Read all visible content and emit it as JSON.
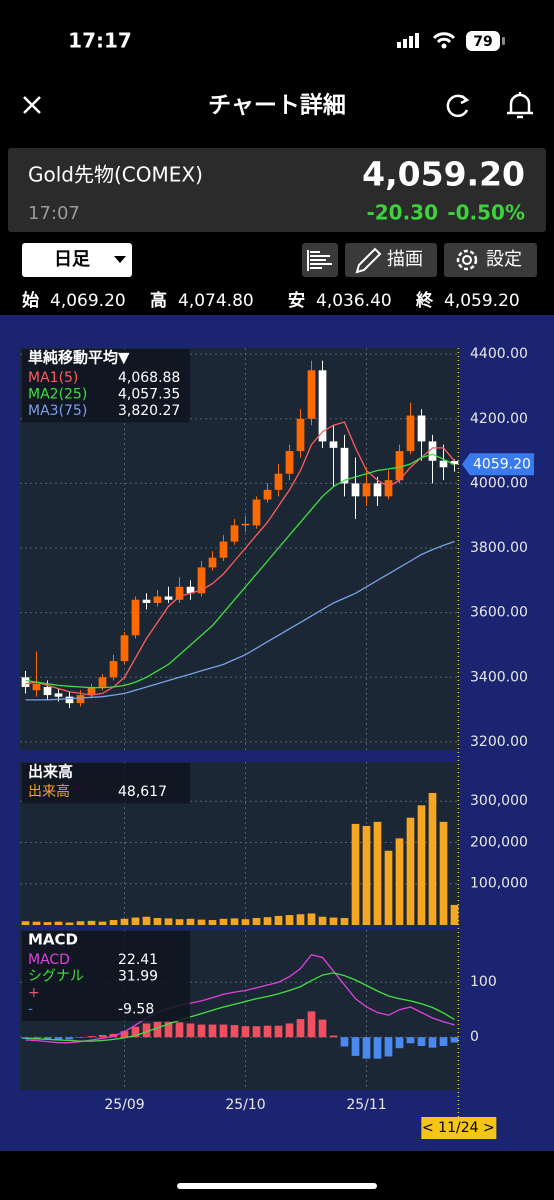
{
  "status_bar": {
    "time": "17:17",
    "battery": "79"
  },
  "header": {
    "title": "チャート詳細"
  },
  "quote": {
    "name": "Gold先物(COMEX)",
    "price": "4,059.20",
    "time": "17:07",
    "change": "-20.30",
    "change_pct": "-0.50%"
  },
  "toolbar": {
    "period": "日足",
    "draw": "描画",
    "settings": "設定"
  },
  "ohlc": [
    {
      "label": "始",
      "value": "4,069.20"
    },
    {
      "label": "高",
      "value": "4,074.80"
    },
    {
      "label": "安",
      "value": "4,036.40"
    },
    {
      "label": "終",
      "value": "4,059.20"
    }
  ],
  "chart_data": [
    {
      "type": "candlestick",
      "legend_title": "単純移動平均▼",
      "up_color": "#ff6a00",
      "down_color": "#ffffff",
      "open": [
        3400,
        3360,
        3370,
        3350,
        3340,
        3320,
        3345,
        3370,
        3400,
        3450,
        3530,
        3640,
        3630,
        3650,
        3640,
        3680,
        3660,
        3740,
        3770,
        3820,
        3870,
        3870,
        3950,
        3980,
        4030,
        4100,
        4200,
        4350,
        4130,
        4110,
        4000,
        3960,
        4000,
        3960,
        4010,
        4100,
        4210,
        4130,
        4070,
        4069.2
      ],
      "high": [
        3420,
        3480,
        3390,
        3365,
        3355,
        3360,
        3380,
        3410,
        3470,
        3540,
        3650,
        3660,
        3670,
        3680,
        3710,
        3700,
        3760,
        3790,
        3840,
        3890,
        3900,
        3960,
        4000,
        4060,
        4120,
        4230,
        4380,
        4380,
        4180,
        4150,
        4080,
        4050,
        4020,
        4040,
        4120,
        4250,
        4230,
        4150,
        4120,
        4074.8
      ],
      "low": [
        3350,
        3340,
        3330,
        3325,
        3305,
        3310,
        3335,
        3360,
        3390,
        3440,
        3520,
        3610,
        3620,
        3630,
        3630,
        3640,
        3650,
        3730,
        3760,
        3810,
        3850,
        3860,
        3940,
        3960,
        4010,
        4080,
        4180,
        4110,
        3990,
        3960,
        3890,
        3930,
        3930,
        3950,
        4000,
        4090,
        4070,
        4000,
        4010,
        4036.4
      ],
      "close": [
        3370,
        3380,
        3345,
        3340,
        3320,
        3345,
        3370,
        3400,
        3450,
        3530,
        3640,
        3630,
        3650,
        3640,
        3680,
        3660,
        3740,
        3770,
        3820,
        3870,
        3875,
        3950,
        3980,
        4030,
        4100,
        4200,
        4350,
        4130,
        4110,
        4000,
        3960,
        4000,
        3960,
        4010,
        4100,
        4210,
        4130,
        4070,
        4050,
        4059.2
      ],
      "series": [
        {
          "name": "MA1(5)",
          "color": "#ff5c5c",
          "value_label": "4,068.88",
          "values": [
            3380,
            3385,
            3375,
            3365,
            3355,
            3350,
            3345,
            3350,
            3370,
            3400,
            3460,
            3520,
            3570,
            3620,
            3650,
            3660,
            3670,
            3690,
            3720,
            3760,
            3800,
            3840,
            3880,
            3930,
            3980,
            4040,
            4120,
            4160,
            4180,
            4190,
            4110,
            4040,
            4010,
            3990,
            4010,
            4050,
            4080,
            4110,
            4110,
            4068.88
          ]
        },
        {
          "name": "MA2(25)",
          "color": "#3ee03e",
          "value_label": "4,057.35",
          "values": [
            3390,
            3385,
            3380,
            3375,
            3372,
            3370,
            3368,
            3368,
            3370,
            3375,
            3385,
            3400,
            3420,
            3440,
            3470,
            3500,
            3530,
            3560,
            3600,
            3640,
            3680,
            3720,
            3760,
            3800,
            3840,
            3880,
            3920,
            3960,
            3990,
            4010,
            4020,
            4030,
            4040,
            4045,
            4050,
            4060,
            4080,
            4090,
            4075,
            4057.35
          ]
        },
        {
          "name": "MA3(75)",
          "color": "#7aa0e8",
          "value_label": "3,820.27",
          "values": [
            3330,
            3330,
            3330,
            3332,
            3334,
            3336,
            3338,
            3340,
            3345,
            3350,
            3360,
            3370,
            3380,
            3390,
            3400,
            3410,
            3420,
            3430,
            3440,
            3455,
            3470,
            3490,
            3510,
            3530,
            3550,
            3570,
            3590,
            3610,
            3630,
            3645,
            3660,
            3680,
            3700,
            3720,
            3740,
            3760,
            3780,
            3795,
            3808,
            3820.27
          ]
        }
      ],
      "ylim": [
        3175,
        4419
      ],
      "yticks": [
        {
          "value": 3200,
          "label": "3200.00"
        },
        {
          "value": 3400,
          "label": "3400.00"
        },
        {
          "value": 3600,
          "label": "3600.00"
        },
        {
          "value": 3800,
          "label": "3800.00"
        },
        {
          "value": 4000,
          "label": "4000.00"
        },
        {
          "value": 4200,
          "label": "4200.00"
        },
        {
          "value": 4400,
          "label": "4400.00"
        }
      ],
      "current": {
        "value": 4059.2,
        "label": "4059.20",
        "color": "#3a7af0"
      }
    },
    {
      "type": "bar",
      "legend_title": "出来高",
      "series": [
        {
          "name": "出来高",
          "color": "#f5a623",
          "value_label": "48,617",
          "values": [
            9000,
            8000,
            7000,
            8000,
            6000,
            9000,
            10000,
            8000,
            12000,
            15000,
            18000,
            20000,
            17000,
            16000,
            14000,
            15000,
            13000,
            12000,
            15000,
            16000,
            14000,
            17000,
            19000,
            22000,
            24000,
            26000,
            28000,
            20000,
            18000,
            17000,
            245000,
            240000,
            250000,
            180000,
            210000,
            260000,
            290000,
            320000,
            250000,
            48617
          ]
        }
      ],
      "ylim": [
        0,
        395000
      ],
      "yticks": [
        {
          "value": 100000,
          "label": "100,000"
        },
        {
          "value": 200000,
          "label": "200,000"
        },
        {
          "value": 300000,
          "label": "300,000"
        }
      ]
    },
    {
      "type": "macd",
      "legend_title": "MACD",
      "categories": [
        null,
        null,
        null,
        null,
        null,
        null,
        null,
        null,
        null,
        "25/09",
        null,
        null,
        null,
        null,
        null,
        null,
        null,
        null,
        null,
        null,
        "25/10",
        null,
        null,
        null,
        null,
        null,
        null,
        null,
        null,
        null,
        null,
        "25/11",
        null,
        null,
        null,
        null,
        null,
        null,
        null,
        null
      ],
      "cursor_label": "< 11/24 >",
      "series": [
        {
          "name": "MACD",
          "color": "#e040e0",
          "value_label": "22.41",
          "values": [
            -5,
            -6,
            -8,
            -10,
            -10,
            -8,
            -5,
            -2,
            2,
            10,
            22,
            35,
            45,
            52,
            58,
            62,
            66,
            72,
            78,
            82,
            85,
            90,
            95,
            100,
            110,
            125,
            150,
            145,
            120,
            95,
            70,
            55,
            45,
            40,
            50,
            55,
            45,
            35,
            28,
            22.41
          ]
        },
        {
          "name": "シグナル",
          "color": "#40e040",
          "value_label": "31.99",
          "values": [
            -2,
            -3,
            -4,
            -5,
            -6,
            -7,
            -7,
            -6,
            -4,
            -1,
            3,
            10,
            17,
            24,
            31,
            37,
            43,
            49,
            55,
            60,
            65,
            70,
            74,
            79,
            85,
            92,
            103,
            113,
            117,
            112,
            104,
            94,
            84,
            75,
            70,
            66,
            61,
            54,
            44,
            31.99
          ]
        }
      ],
      "histogram": {
        "names": [
          "+",
          "-"
        ],
        "colors": [
          "#f05060",
          "#4a8af0"
        ],
        "value_label": "-9.58",
        "values": [
          -3,
          -3,
          -4,
          -5,
          -4,
          -1,
          2,
          4,
          6,
          11,
          19,
          25,
          28,
          28,
          27,
          25,
          23,
          23,
          23,
          22,
          20,
          20,
          21,
          21,
          25,
          33,
          47,
          32,
          3,
          -17,
          -34,
          -39,
          -39,
          -35,
          -20,
          -11,
          -16,
          -19,
          -16,
          -9.58
        ]
      },
      "ylim": [
        -96,
        195
      ],
      "yticks": [
        0,
        100
      ]
    }
  ]
}
